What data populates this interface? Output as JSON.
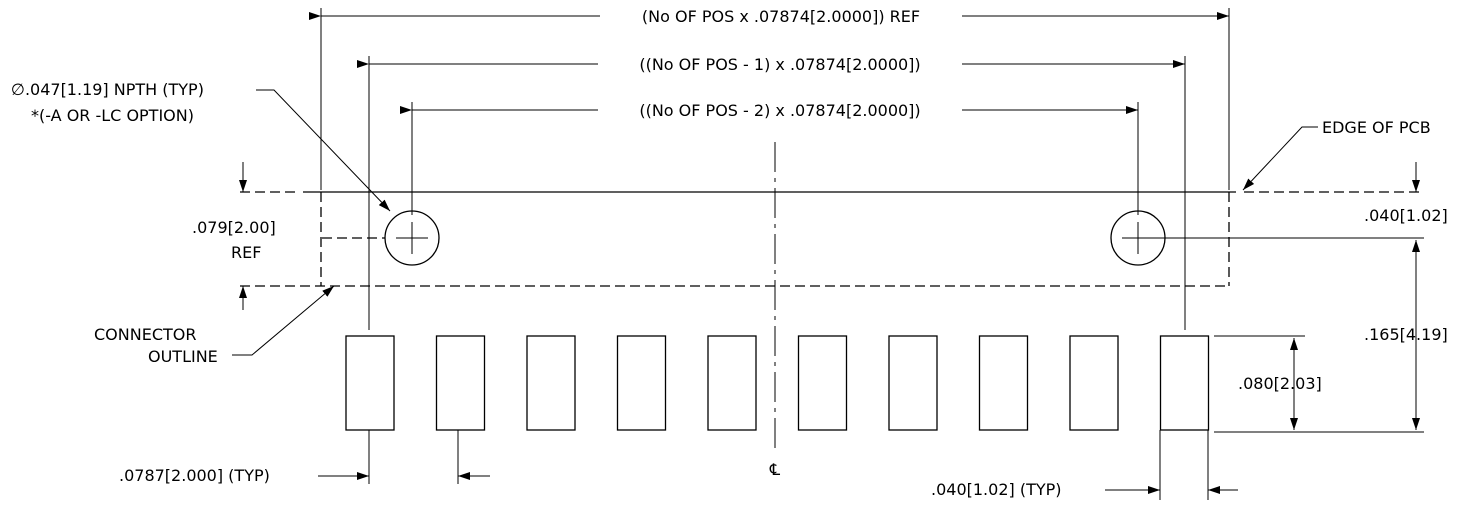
{
  "dimensions": {
    "overall_length": "(No OF POS x .07874[2.0000]) REF",
    "outer_hole_span": "((No OF POS - 1) x .07874[2.0000])",
    "inner_hole_span": "((No OF POS - 2) x .07874[2.0000])",
    "hole_callout_line1": "∅.047[1.19] NPTH (TYP)",
    "hole_callout_line2": "*(-A OR -LC OPTION)",
    "edge_of_pcb": "EDGE OF PCB",
    "connector_width_line1": ".079[2.00]",
    "connector_width_line2": "REF",
    "hole_offset": ".040[1.02]",
    "edge_to_pad_end": ".165[4.19]",
    "pad_length": ".080[2.03]",
    "connector_outline_line1": "CONNECTOR",
    "connector_outline_line2": "OUTLINE",
    "pitch": ".0787[2.000] (TYP)",
    "pad_width": ".040[1.02] (TYP)",
    "centerline_symbol": "℄"
  },
  "pads": {
    "count": 10
  }
}
